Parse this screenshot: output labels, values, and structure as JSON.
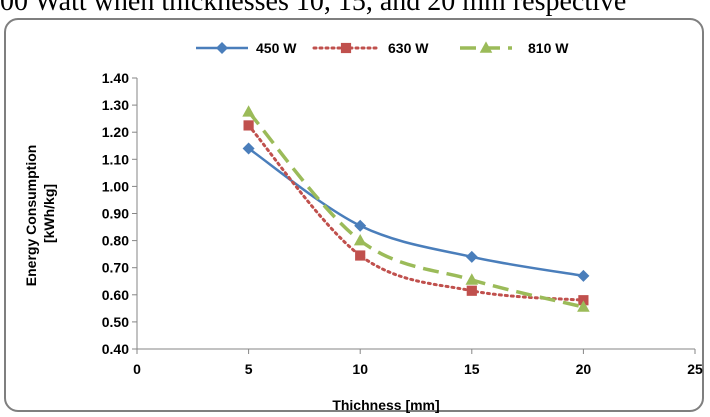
{
  "caption_fragment": "00 Watt when thicknesses 10, 15, and 20 mm respective",
  "chart_data": {
    "type": "line",
    "xlabel": "Thichness [mm]",
    "ylabel_lines": [
      "Energy Consumption",
      "[kWh/kg]"
    ],
    "x": [
      5,
      10,
      15,
      20
    ],
    "xlim": [
      0,
      25
    ],
    "xticks": [
      0,
      5,
      10,
      15,
      20,
      25
    ],
    "ylim": [
      0.4,
      1.4
    ],
    "yticks": [
      0.4,
      0.5,
      0.6,
      0.7,
      0.8,
      0.9,
      1.0,
      1.1,
      1.2,
      1.3,
      1.4
    ],
    "ytick_labels": [
      "0.40",
      "0.50",
      "0.60",
      "0.70",
      "0.80",
      "0.90",
      "1.00",
      "1.10",
      "1.20",
      "1.30",
      "1.40"
    ],
    "legend_position": "top",
    "grid": false,
    "series": [
      {
        "name": "450 W",
        "values": [
          1.14,
          0.855,
          0.74,
          0.67
        ],
        "color": "#4a7ebb",
        "marker": "diamond",
        "line": "solid"
      },
      {
        "name": "630 W",
        "values": [
          1.225,
          0.745,
          0.615,
          0.58
        ],
        "color": "#c0504d",
        "marker": "square",
        "line": "dotted"
      },
      {
        "name": "810 W",
        "values": [
          1.275,
          0.8,
          0.655,
          0.555
        ],
        "color": "#9bbb59",
        "marker": "triangle",
        "line": "dashed"
      }
    ]
  }
}
